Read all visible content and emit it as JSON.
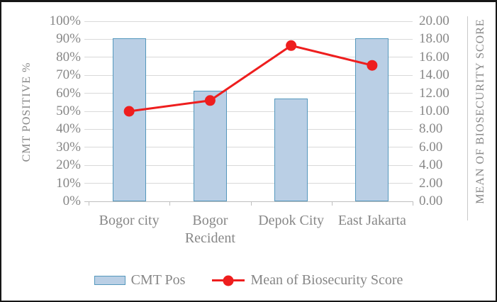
{
  "colors": {
    "bar_fill": "#bacfe5",
    "bar_border": "#5598bd",
    "line": "#ee1e1e",
    "text": "#878787",
    "gridline": "#d9d9d9",
    "axis_line": "#bfbfbf"
  },
  "chart_data": {
    "type": "combo",
    "grid": true,
    "categories": [
      "Bogor city",
      "Bogor Recident",
      "Depok City",
      "East Jakarta"
    ],
    "series": [
      {
        "name": "CMT Pos",
        "type": "bar",
        "axis": "left",
        "unit": "%",
        "values": [
          90.5,
          61.5,
          57,
          90.5
        ]
      },
      {
        "name": "Mean of Biosecurity Score",
        "type": "line",
        "axis": "right",
        "values": [
          10.0,
          11.2,
          17.3,
          15.1
        ]
      }
    ],
    "left_axis": {
      "title": "CMT POSITIVE  %",
      "min": 0,
      "max": 100,
      "step": 10,
      "format": "percent",
      "tick_labels": [
        "100%",
        "90%",
        "80%",
        "70%",
        "60%",
        "50%",
        "40%",
        "30%",
        "20%",
        "10%",
        "0%"
      ]
    },
    "right_axis": {
      "title": "MEAN OF BIOSECURITY SCORE",
      "min": 0,
      "max": 20,
      "step": 2,
      "tick_labels": [
        "20.00",
        "18.00",
        "16.00",
        "14.00",
        "12.00",
        "10.00",
        "8.00",
        "6.00",
        "4.00",
        "2.00",
        "0.00"
      ]
    },
    "legend": {
      "position": "bottom",
      "entries": [
        "CMT Pos",
        "Mean of Biosecurity Score"
      ]
    }
  }
}
